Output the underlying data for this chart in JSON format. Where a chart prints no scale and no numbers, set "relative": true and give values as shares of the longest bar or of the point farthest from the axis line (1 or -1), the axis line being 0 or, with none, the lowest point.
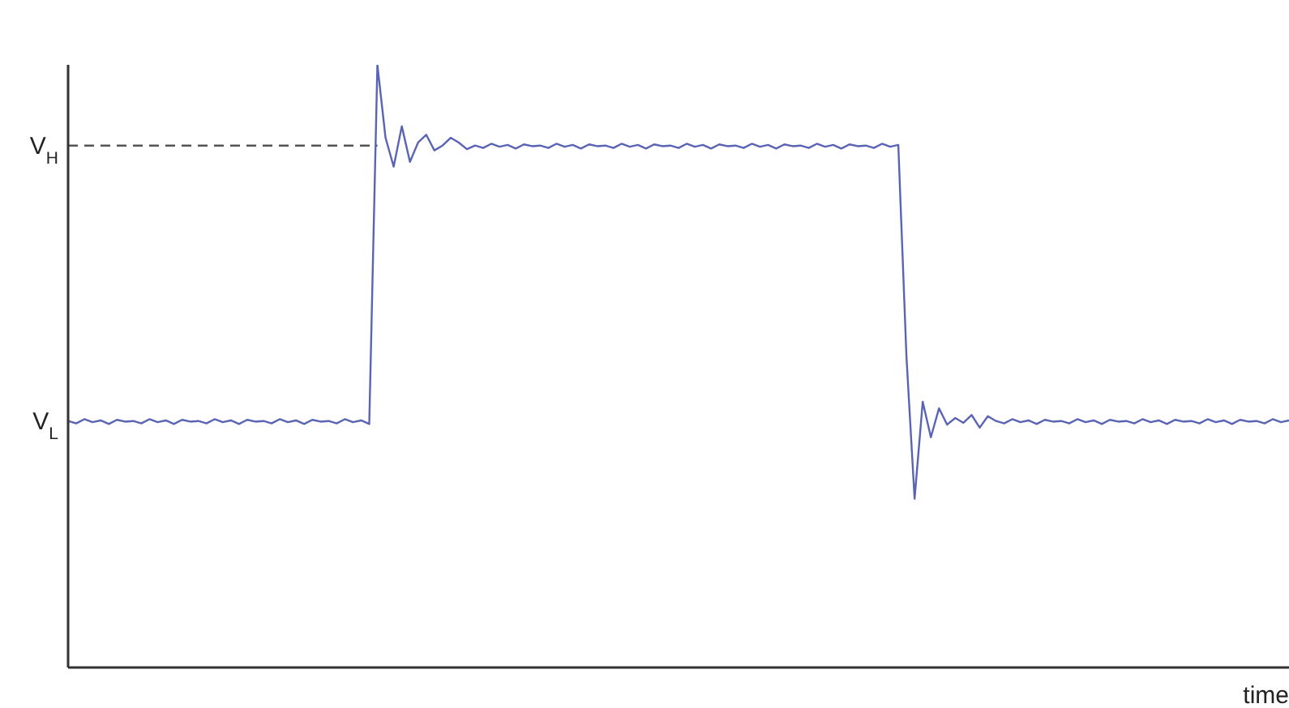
{
  "chart_data": {
    "type": "line",
    "relative": true,
    "xlabel": "time",
    "grid": false,
    "categories": [
      null,
      null,
      null,
      null,
      null,
      null,
      null,
      null,
      null,
      null,
      null,
      null,
      null,
      null,
      null,
      null,
      null,
      null,
      null,
      null,
      null,
      null,
      null,
      null,
      null,
      null,
      null,
      null,
      null,
      null,
      null,
      null,
      null,
      null,
      null,
      null,
      null,
      null,
      null,
      null,
      null,
      null,
      null,
      null,
      null,
      null,
      null,
      null,
      null,
      null,
      null,
      null,
      null,
      null,
      null,
      null,
      null,
      null,
      null,
      null,
      null,
      null,
      null,
      null,
      null,
      null,
      null,
      null,
      null,
      null,
      null,
      null,
      null,
      null,
      null,
      null,
      null,
      null,
      null,
      null,
      null,
      null,
      null,
      null,
      null,
      null,
      null,
      null,
      null,
      null,
      null,
      null,
      null,
      null,
      null,
      null,
      null,
      null,
      null,
      null,
      null,
      null,
      null,
      null,
      null,
      null,
      null,
      null,
      null,
      null,
      null,
      null,
      null,
      null,
      null,
      null,
      null,
      null,
      null,
      null,
      null,
      null,
      null,
      null,
      null,
      null,
      null,
      null,
      null,
      null,
      null,
      null,
      null,
      null,
      null,
      null,
      null,
      null,
      null,
      null,
      null,
      null,
      null,
      null,
      null,
      null,
      null,
      null,
      null,
      null,
      null
    ],
    "series": [
      {
        "color": "#5a64b4",
        "values": [
          0.409,
          0.405,
          0.412,
          0.407,
          0.41,
          0.404,
          0.411,
          0.408,
          0.409,
          0.405,
          0.412,
          0.407,
          0.41,
          0.404,
          0.411,
          0.408,
          0.409,
          0.405,
          0.412,
          0.407,
          0.41,
          0.404,
          0.411,
          0.408,
          0.409,
          0.405,
          0.412,
          0.407,
          0.41,
          0.404,
          0.411,
          0.408,
          0.409,
          0.405,
          0.412,
          0.407,
          0.41,
          0.404,
          1.0,
          0.879,
          0.831,
          0.898,
          0.839,
          0.871,
          0.884,
          0.858,
          0.866,
          0.879,
          0.871,
          0.86,
          0.866,
          0.862,
          0.869,
          0.864,
          0.867,
          0.861,
          0.868,
          0.865,
          0.866,
          0.862,
          0.869,
          0.864,
          0.867,
          0.861,
          0.868,
          0.865,
          0.866,
          0.862,
          0.869,
          0.864,
          0.867,
          0.861,
          0.868,
          0.865,
          0.866,
          0.862,
          0.869,
          0.864,
          0.867,
          0.861,
          0.868,
          0.865,
          0.866,
          0.862,
          0.869,
          0.864,
          0.867,
          0.861,
          0.868,
          0.865,
          0.866,
          0.862,
          0.869,
          0.864,
          0.867,
          0.861,
          0.868,
          0.865,
          0.866,
          0.862,
          0.869,
          0.864,
          0.867,
          0.516,
          0.28,
          0.441,
          0.382,
          0.43,
          0.403,
          0.414,
          0.406,
          0.419,
          0.398,
          0.417,
          0.409,
          0.405,
          0.412,
          0.407,
          0.41,
          0.404,
          0.411,
          0.408,
          0.409,
          0.405,
          0.412,
          0.407,
          0.41,
          0.404,
          0.411,
          0.408,
          0.409,
          0.405,
          0.412,
          0.407,
          0.41,
          0.404,
          0.411,
          0.408,
          0.409,
          0.405,
          0.412,
          0.407,
          0.41,
          0.404,
          0.411,
          0.408,
          0.409,
          0.405,
          0.412,
          0.407,
          0.41
        ]
      }
    ],
    "ref_lines": [
      {
        "axis": "y",
        "value": 0.866,
        "label": "V$_{H}$",
        "color": "#555555",
        "line_style": "dashed"
      }
    ],
    "annotations": [
      "V$_{L}$"
    ]
  }
}
